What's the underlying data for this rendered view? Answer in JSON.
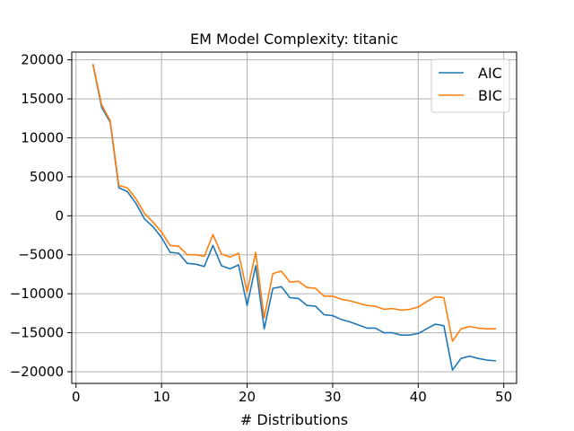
{
  "chart_data": {
    "type": "line",
    "title": "EM Model Complexity: titanic",
    "xlabel": "# Distributions",
    "ylabel": "",
    "xlim": [
      -0.5,
      51.5
    ],
    "ylim": [
      -21500,
      21000
    ],
    "xticks": [
      0,
      10,
      20,
      30,
      40,
      50
    ],
    "yticks": [
      -20000,
      -15000,
      -10000,
      -5000,
      0,
      5000,
      10000,
      15000,
      20000
    ],
    "grid": true,
    "legend": "top-right",
    "x": [
      2,
      3,
      4,
      5,
      6,
      7,
      8,
      9,
      10,
      11,
      12,
      13,
      14,
      15,
      16,
      17,
      18,
      19,
      20,
      21,
      22,
      23,
      24,
      25,
      26,
      27,
      28,
      29,
      30,
      31,
      32,
      33,
      34,
      35,
      36,
      37,
      38,
      39,
      40,
      41,
      42,
      43,
      44,
      45,
      46,
      47,
      48,
      49
    ],
    "series": [
      {
        "name": "AIC",
        "color": "#1f77b4",
        "values": [
          19300,
          13900,
          12000,
          3600,
          3100,
          1600,
          -400,
          -1400,
          -2800,
          -4700,
          -4800,
          -6100,
          -6200,
          -6500,
          -3800,
          -6400,
          -6800,
          -6300,
          -11500,
          -6400,
          -14500,
          -9300,
          -9100,
          -10500,
          -10600,
          -11500,
          -11600,
          -12700,
          -12800,
          -13300,
          -13600,
          -14000,
          -14400,
          -14400,
          -15000,
          -15000,
          -15300,
          -15300,
          -15100,
          -14500,
          -13900,
          -14100,
          -19800,
          -18300,
          -18000,
          -18300,
          -18500,
          -18600
        ]
      },
      {
        "name": "BIC",
        "color": "#ff7f0e",
        "values": [
          19400,
          14200,
          12200,
          3900,
          3600,
          2200,
          300,
          -800,
          -2100,
          -3800,
          -3900,
          -5000,
          -5000,
          -5200,
          -2400,
          -4900,
          -5300,
          -4800,
          -9800,
          -4700,
          -13100,
          -7400,
          -7100,
          -8500,
          -8400,
          -9200,
          -9300,
          -10300,
          -10300,
          -10700,
          -10900,
          -11200,
          -11500,
          -11600,
          -12000,
          -11900,
          -12100,
          -12000,
          -11700,
          -11000,
          -10400,
          -10500,
          -16100,
          -14500,
          -14200,
          -14400,
          -14500,
          -14500
        ]
      }
    ]
  }
}
